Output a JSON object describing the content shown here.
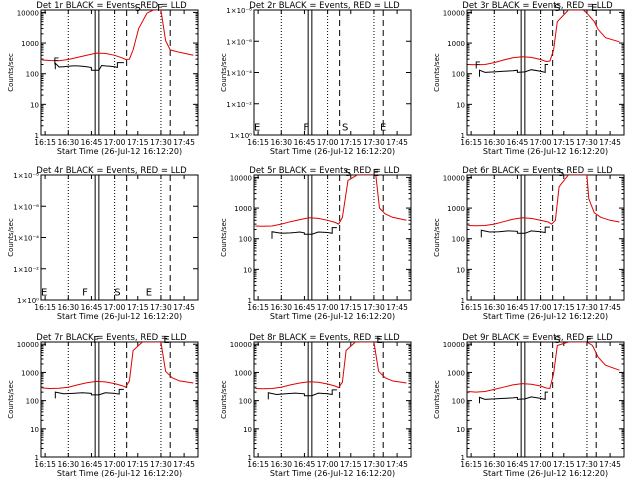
{
  "window": {
    "background": "#ffffff"
  },
  "colors": {
    "events": "#000000",
    "lld": "#e00000",
    "axis": "#000000"
  },
  "shared": {
    "xlabel": "Start Time (26-Jul-12 16:12:20)",
    "ylabel": "Counts/sec",
    "xtick_labels": [
      "16:15",
      "16:30",
      "16:45",
      "17:00",
      "17:15",
      "17:30",
      "17:45"
    ],
    "xtick_values": [
      16.25,
      16.5,
      16.75,
      17.0,
      17.25,
      17.5,
      17.75
    ],
    "xlim": [
      16.2056,
      17.9
    ],
    "ylog_labels": [
      "1",
      "10",
      "100",
      "1000",
      "10000"
    ],
    "ylog_values": [
      1,
      10,
      100,
      1000,
      10000
    ],
    "ylog_range": [
      1,
      12000
    ],
    "yzero_labels": [
      "1×10⁰",
      "1×10⁻²",
      "1×10⁻⁴",
      "1×10⁻⁶",
      "1×10⁻⁸"
    ],
    "yzero_values": [
      0,
      2,
      4,
      6,
      8
    ],
    "dotted_x": [
      16.5,
      17.0,
      17.5
    ],
    "double_x": [
      16.79,
      16.83
    ],
    "dashed_x": [
      17.13,
      17.6
    ]
  },
  "chart_data": [
    {
      "type": "line",
      "detector": "1r",
      "title": "Det 1r BLACK = Events, RED = LLD",
      "yscale": "log",
      "events": {
        "x": [
          16.36,
          16.36,
          16.4,
          16.45,
          16.5,
          16.55,
          16.6,
          16.65,
          16.7,
          16.75,
          16.75,
          16.83,
          16.86,
          16.9,
          16.95,
          17.0,
          17.03,
          17.03,
          17.1
        ],
        "y": [
          140,
          220,
          165,
          170,
          175,
          180,
          180,
          175,
          170,
          160,
          130,
          130,
          185,
          180,
          175,
          170,
          160,
          230,
          230
        ]
      },
      "lld": {
        "x": [
          16.22,
          16.3,
          16.4,
          16.5,
          16.6,
          16.7,
          16.8,
          16.9,
          17.0,
          17.08,
          17.12,
          17.16,
          17.2,
          17.26,
          17.35,
          17.42,
          17.46,
          17.5,
          17.55,
          17.6,
          17.7,
          17.85
        ],
        "y": [
          280,
          270,
          265,
          290,
          340,
          400,
          470,
          460,
          400,
          330,
          290,
          300,
          600,
          3000,
          9500,
          12000,
          12000,
          12000,
          1200,
          600,
          500,
          400
        ]
      },
      "markers": {
        "labels": [
          "F",
          "S",
          "F"
        ],
        "x": [
          16.37,
          17.25,
          17.49
        ],
        "y": [
          200,
          11000,
          11000
        ]
      }
    },
    {
      "type": "line",
      "detector": "2r",
      "title": "Det 2r BLACK = Events, RED = LLD",
      "yscale": "zero",
      "events": {
        "x": [],
        "y": []
      },
      "lld": {
        "x": [],
        "y": []
      },
      "markers": {
        "labels": [
          "E",
          "F",
          "S",
          "E"
        ],
        "x": [
          16.24,
          16.77,
          17.19,
          17.6
        ],
        "y": [
          0.3,
          0.3,
          0.3,
          0.3
        ]
      }
    },
    {
      "type": "line",
      "detector": "3r",
      "title": "Det 3r BLACK = Events, RED = LLD",
      "yscale": "log",
      "events": {
        "x": [
          16.34,
          16.34,
          16.4,
          16.5,
          16.6,
          16.7,
          16.75,
          16.75,
          16.83,
          16.9,
          17.0,
          17.05,
          17.05,
          17.08
        ],
        "y": [
          80,
          130,
          110,
          115,
          120,
          125,
          130,
          110,
          115,
          135,
          120,
          110,
          200,
          200
        ]
      },
      "lld": {
        "x": [
          16.22,
          16.3,
          16.4,
          16.5,
          16.6,
          16.7,
          16.8,
          16.9,
          17.0,
          17.06,
          17.1,
          17.14,
          17.18,
          17.3,
          17.42,
          17.46,
          17.5,
          17.58,
          17.62,
          17.7,
          17.85
        ],
        "y": [
          200,
          195,
          200,
          230,
          280,
          330,
          360,
          340,
          290,
          250,
          260,
          600,
          5000,
          12000,
          12000,
          12000,
          9500,
          5000,
          2800,
          1500,
          1100
        ]
      },
      "markers": {
        "labels": [
          "F",
          "S",
          "E"
        ],
        "x": [
          16.32,
          17.18,
          17.58
        ],
        "y": [
          150,
          11000,
          11000
        ]
      }
    },
    {
      "type": "line",
      "detector": "4r",
      "title": "Det 4r BLACK = Events, RED = LLD",
      "yscale": "zero",
      "events": {
        "x": [],
        "y": []
      },
      "lld": {
        "x": [],
        "y": []
      },
      "markers": {
        "labels": [
          "E",
          "F",
          "S",
          "E"
        ],
        "x": [
          16.24,
          16.68,
          17.03,
          17.37
        ],
        "y": [
          0.3,
          0.3,
          0.3,
          0.3
        ]
      }
    },
    {
      "type": "line",
      "detector": "5r",
      "title": "Det 5r BLACK = Events, RED = LLD",
      "yscale": "log",
      "events": {
        "x": [
          16.4,
          16.4,
          16.5,
          16.6,
          16.65,
          16.7,
          16.75,
          16.75,
          16.83,
          16.9,
          17.0,
          17.05,
          17.05,
          17.1
        ],
        "y": [
          100,
          170,
          150,
          155,
          160,
          165,
          155,
          140,
          140,
          165,
          160,
          150,
          230,
          230
        ]
      },
      "lld": {
        "x": [
          16.22,
          16.3,
          16.4,
          16.5,
          16.6,
          16.7,
          16.8,
          16.9,
          17.0,
          17.08,
          17.12,
          17.16,
          17.22,
          17.32,
          17.42,
          17.48,
          17.52,
          17.56,
          17.62,
          17.7,
          17.85
        ],
        "y": [
          260,
          255,
          260,
          300,
          360,
          420,
          480,
          460,
          400,
          340,
          300,
          500,
          8000,
          12000,
          12000,
          12000,
          12000,
          1000,
          650,
          500,
          400
        ]
      },
      "markers": {
        "labels": [
          "S",
          "E"
        ],
        "x": [
          17.22,
          17.52
        ],
        "y": [
          11000,
          11000
        ]
      }
    },
    {
      "type": "line",
      "detector": "6r",
      "title": "Det 6r BLACK = Events, RED = LLD",
      "yscale": "log",
      "events": {
        "x": [
          16.36,
          16.36,
          16.45,
          16.55,
          16.65,
          16.75,
          16.75,
          16.83,
          16.9,
          17.0,
          17.05,
          17.05,
          17.1
        ],
        "y": [
          110,
          190,
          165,
          170,
          180,
          175,
          150,
          150,
          180,
          170,
          160,
          240,
          240
        ]
      },
      "lld": {
        "x": [
          16.22,
          16.3,
          16.4,
          16.5,
          16.6,
          16.7,
          16.8,
          16.9,
          17.0,
          17.08,
          17.12,
          17.16,
          17.2,
          17.3,
          17.42,
          17.5,
          17.52,
          17.58,
          17.65,
          17.75,
          17.85
        ],
        "y": [
          270,
          265,
          270,
          300,
          360,
          430,
          480,
          460,
          400,
          350,
          300,
          400,
          5000,
          12000,
          12000,
          12000,
          2000,
          700,
          500,
          400,
          350
        ]
      },
      "markers": {
        "labels": [
          "S"
        ],
        "x": [
          17.22
        ],
        "y": [
          11000
        ]
      }
    },
    {
      "type": "line",
      "detector": "7r",
      "title": "Det 7r BLACK = Events, RED = LLD",
      "yscale": "log",
      "events": {
        "x": [
          16.36,
          16.36,
          16.45,
          16.55,
          16.65,
          16.75,
          16.75,
          16.83,
          16.9,
          17.0,
          17.05,
          17.05,
          17.1
        ],
        "y": [
          120,
          200,
          175,
          180,
          190,
          180,
          160,
          160,
          190,
          180,
          170,
          250,
          250
        ]
      },
      "lld": {
        "x": [
          16.22,
          16.3,
          16.4,
          16.5,
          16.6,
          16.7,
          16.8,
          16.9,
          17.0,
          17.08,
          17.12,
          17.16,
          17.2,
          17.3,
          17.42,
          17.5,
          17.55,
          17.62,
          17.7,
          17.85
        ],
        "y": [
          280,
          270,
          275,
          300,
          360,
          430,
          480,
          460,
          400,
          340,
          300,
          500,
          6000,
          12000,
          12000,
          12000,
          1100,
          650,
          500,
          420
        ]
      },
      "markers": {
        "labels": [
          "F",
          "E"
        ],
        "x": [
          16.8,
          17.56
        ],
        "y": [
          11000,
          11000
        ]
      }
    },
    {
      "type": "line",
      "detector": "8r",
      "title": "Det 8r BLACK = Events, RED = LLD",
      "yscale": "log",
      "events": {
        "x": [
          16.36,
          16.36,
          16.45,
          16.55,
          16.65,
          16.75,
          16.75,
          16.83,
          16.9,
          17.0,
          17.05,
          17.05,
          17.1
        ],
        "y": [
          110,
          190,
          165,
          175,
          185,
          175,
          150,
          150,
          185,
          175,
          165,
          240,
          240
        ]
      },
      "lld": {
        "x": [
          16.22,
          16.3,
          16.4,
          16.5,
          16.6,
          16.7,
          16.8,
          16.9,
          17.0,
          17.08,
          17.12,
          17.16,
          17.2,
          17.3,
          17.42,
          17.5,
          17.55,
          17.62,
          17.7,
          17.85
        ],
        "y": [
          270,
          265,
          270,
          300,
          360,
          420,
          470,
          450,
          390,
          330,
          290,
          450,
          6000,
          12000,
          12000,
          12000,
          1100,
          650,
          500,
          420
        ]
      },
      "markers": {
        "labels": [
          "E"
        ],
        "x": [
          17.56
        ],
        "y": [
          11000
        ]
      }
    },
    {
      "type": "line",
      "detector": "9r",
      "title": "Det 9r BLACK = Events, RED = LLD",
      "yscale": "log",
      "events": {
        "x": [
          16.34,
          16.34,
          16.4,
          16.5,
          16.6,
          16.7,
          16.75,
          16.75,
          16.83,
          16.9,
          17.0,
          17.05,
          17.05,
          17.08
        ],
        "y": [
          80,
          130,
          110,
          115,
          120,
          125,
          130,
          110,
          115,
          135,
          120,
          110,
          200,
          200
        ]
      },
      "lld": {
        "x": [
          16.22,
          16.3,
          16.4,
          16.5,
          16.6,
          16.7,
          16.8,
          16.9,
          17.0,
          17.06,
          17.1,
          17.14,
          17.18,
          17.3,
          17.42,
          17.46,
          17.5,
          17.56,
          17.62,
          17.7,
          17.85
        ],
        "y": [
          210,
          200,
          210,
          250,
          300,
          360,
          400,
          380,
          330,
          280,
          270,
          900,
          9000,
          12000,
          12000,
          12000,
          12000,
          9000,
          3500,
          1800,
          1200
        ]
      },
      "markers": {
        "labels": [
          "S",
          "F"
        ],
        "x": [
          17.18,
          17.52
        ],
        "y": [
          11000,
          11000
        ]
      }
    }
  ]
}
